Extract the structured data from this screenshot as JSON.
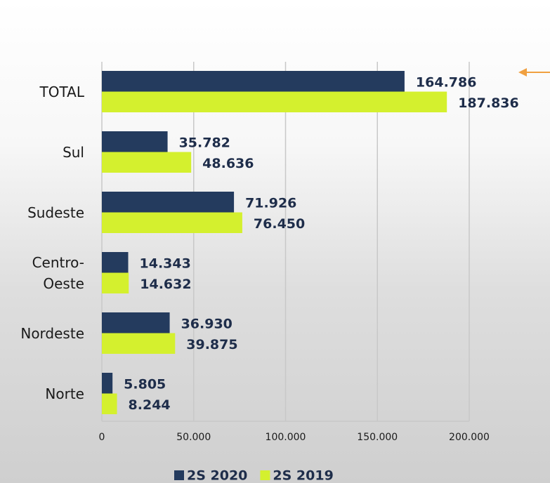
{
  "chart_data": {
    "type": "bar",
    "orientation": "horizontal",
    "categories": [
      "TOTAL",
      "Sul",
      "Sudeste",
      "Centro-Oeste",
      "Nordeste",
      "Norte"
    ],
    "series": [
      {
        "name": "2S 2020",
        "color": "#243b5e",
        "values": [
          164786,
          35782,
          71926,
          14343,
          36930,
          5805
        ],
        "value_labels": [
          "164.786",
          "35.782",
          "71.926",
          "14.343",
          "36.930",
          "5.805"
        ]
      },
      {
        "name": "2S 2019",
        "color": "#d4f02e",
        "values": [
          187836,
          48636,
          76450,
          14632,
          39875,
          8244
        ],
        "value_labels": [
          "187.836",
          "48.636",
          "76.450",
          "14.632",
          "39.875",
          "8.244"
        ]
      }
    ],
    "xlim": [
      0,
      200000
    ],
    "xticks": [
      0,
      {
        "value": 50000,
        "label": "50.000"
      },
      {
        "value": 100000,
        "label": "100.000"
      },
      {
        "value": 150000,
        "label": "150.000"
      },
      {
        "value": 200000,
        "label": "200.000"
      }
    ],
    "grid": true,
    "legend": "bottom"
  }
}
